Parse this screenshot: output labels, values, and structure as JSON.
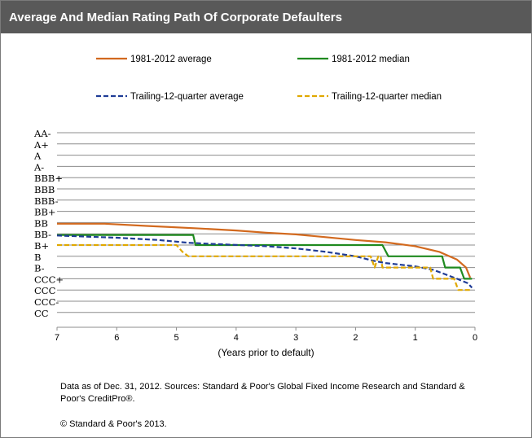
{
  "chart_data": {
    "type": "line",
    "title": "Average And Median Rating Path Of Corporate Defaulters",
    "xlabel": "(Years prior to default)",
    "ylabel": "",
    "xlim": [
      7,
      0
    ],
    "x_ticks": [
      "7",
      "6",
      "5",
      "4",
      "3",
      "2",
      "1",
      "0"
    ],
    "y_categories": [
      "AA-",
      "A+",
      "A",
      "A-",
      "BBB+",
      "BBB",
      "BBB-",
      "BB+",
      "BB",
      "BB-",
      "B+",
      "B",
      "B-",
      "CCC+",
      "CCC",
      "CCC-",
      "CC"
    ],
    "grid": true,
    "legend_position": "top",
    "series": [
      {
        "name": "1981-2012 average",
        "color": "#d2691e",
        "style": "solid",
        "points": [
          [
            7,
            8.1
          ],
          [
            6.2,
            8.1
          ],
          [
            5.5,
            8.3
          ],
          [
            4.7,
            8.5
          ],
          [
            4,
            8.7
          ],
          [
            3.5,
            8.9
          ],
          [
            3,
            9.05
          ],
          [
            2.5,
            9.3
          ],
          [
            2,
            9.55
          ],
          [
            1.5,
            9.75
          ],
          [
            1,
            10.1
          ],
          [
            0.6,
            10.6
          ],
          [
            0.3,
            11.3
          ],
          [
            0.15,
            12
          ],
          [
            0.08,
            12.9
          ]
        ]
      },
      {
        "name": "1981-2012 median",
        "color": "#1f8a1f",
        "style": "solid",
        "points": [
          [
            7,
            9.1
          ],
          [
            4.72,
            9.1
          ],
          [
            4.68,
            10
          ],
          [
            1.55,
            10
          ],
          [
            1.45,
            11
          ],
          [
            0.55,
            11
          ],
          [
            0.5,
            12
          ],
          [
            0.25,
            12
          ],
          [
            0.18,
            13
          ],
          [
            0.05,
            13
          ]
        ]
      },
      {
        "name": "Trailing-12-quarter average",
        "color": "#1f3c96",
        "style": "dashed",
        "points": [
          [
            7,
            9.15
          ],
          [
            6,
            9.35
          ],
          [
            5.3,
            9.55
          ],
          [
            4.8,
            9.8
          ],
          [
            4.4,
            9.9
          ],
          [
            3.5,
            10.1
          ],
          [
            3,
            10.3
          ],
          [
            2.5,
            10.6
          ],
          [
            2,
            11
          ],
          [
            1.7,
            11.4
          ],
          [
            1.5,
            11.6
          ],
          [
            1,
            11.9
          ],
          [
            0.7,
            12.2
          ],
          [
            0.5,
            12.6
          ],
          [
            0.3,
            13
          ],
          [
            0.12,
            13.4
          ],
          [
            0.05,
            13.8
          ]
        ]
      },
      {
        "name": "Trailing-12-quarter median",
        "color": "#e0a800",
        "style": "dashed",
        "points": [
          [
            7,
            10
          ],
          [
            5,
            10
          ],
          [
            4.9,
            10.6
          ],
          [
            4.8,
            11
          ],
          [
            1.75,
            11
          ],
          [
            1.68,
            12
          ],
          [
            1.62,
            11
          ],
          [
            1.58,
            11
          ],
          [
            1.55,
            12
          ],
          [
            0.75,
            12
          ],
          [
            0.7,
            13
          ],
          [
            0.35,
            13
          ],
          [
            0.28,
            14
          ],
          [
            0.12,
            14
          ],
          [
            0.05,
            14
          ]
        ]
      }
    ]
  },
  "notes": "Data as of Dec. 31, 2012. Sources: Standard & Poor's Global Fixed Income Research and Standard & Poor's CreditPro®.",
  "copyright": "© Standard & Poor's 2013."
}
